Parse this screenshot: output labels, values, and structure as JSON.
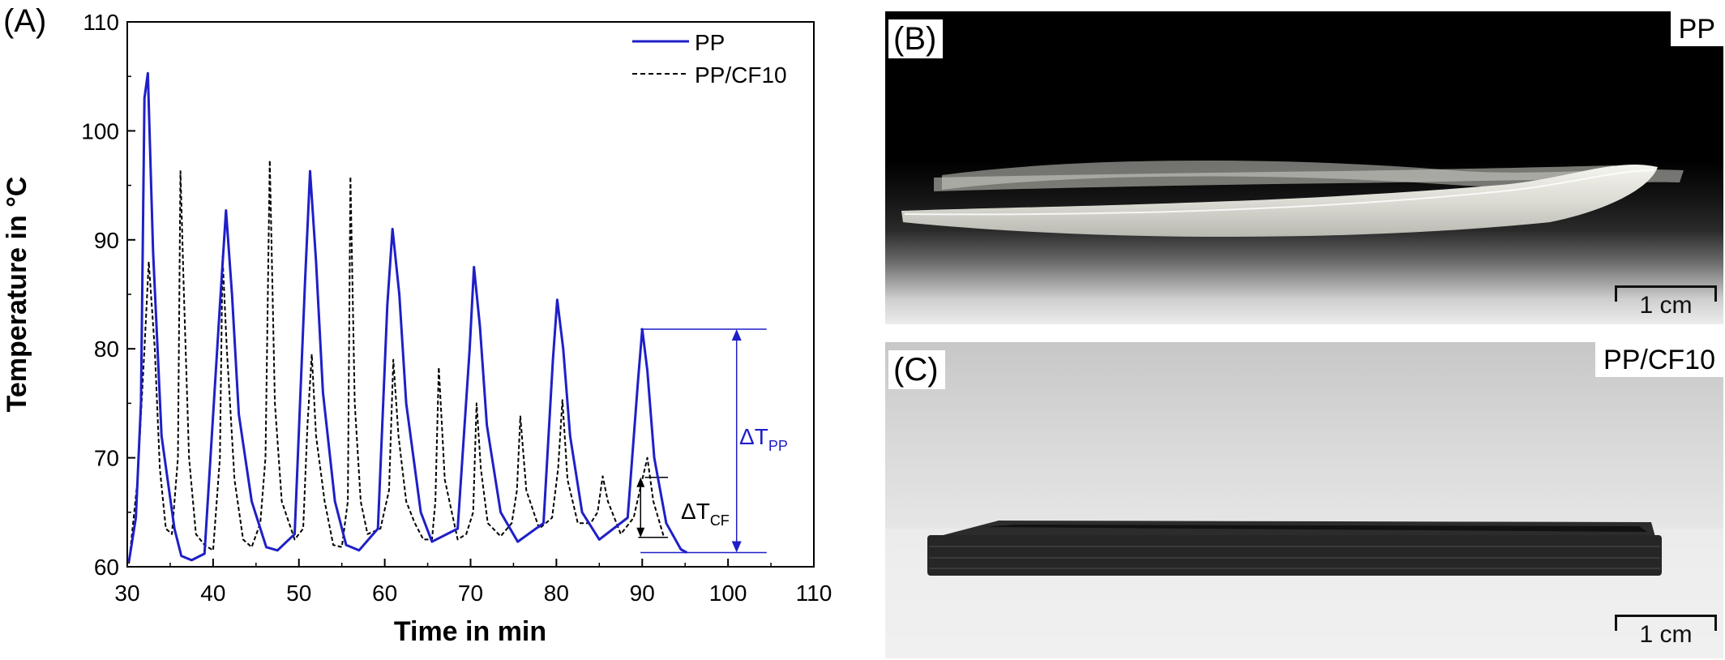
{
  "panels": {
    "a_label": "(A)",
    "b_label": "(B)",
    "c_label": "(C)"
  },
  "chart_data": {
    "type": "line",
    "xlabel": "Time in min",
    "ylabel": "Temperature in °C",
    "xlim": [
      30,
      110
    ],
    "ylim": [
      60,
      110
    ],
    "xticks": [
      30,
      40,
      50,
      60,
      70,
      80,
      90,
      100,
      110
    ],
    "yticks": [
      60,
      70,
      80,
      90,
      100,
      110
    ],
    "legend_position": "top-right",
    "series": [
      {
        "name": "PP",
        "color": "#1f1fc8",
        "style": "solid",
        "base": [
          60.8,
          60.7,
          60.9,
          61.0,
          61.4,
          61.6,
          61.9,
          62.2
        ],
        "x": [
          30.2,
          31.0,
          31.6,
          32.0,
          32.4,
          33.0,
          34.0,
          35.5,
          36.3,
          37.5,
          39.0,
          40.8,
          41.5,
          42.2,
          43.0,
          44.5,
          46.2,
          47.5,
          49.5,
          50.7,
          51.3,
          52.0,
          52.8,
          54.2,
          55.5,
          57.0,
          59.2,
          60.3,
          60.9,
          61.7,
          62.5,
          64.2,
          65.5,
          68.5,
          69.9,
          70.4,
          71.1,
          71.9,
          73.5,
          75.5,
          78.5,
          79.6,
          80.1,
          80.8,
          81.6,
          83.0,
          85.0,
          88.3,
          89.5,
          90.0,
          90.6,
          91.4,
          92.8,
          94.5,
          95.2
        ],
        "y": [
          60.5,
          64.5,
          75.0,
          103.0,
          105.3,
          89.0,
          72.0,
          63.5,
          61.0,
          60.6,
          61.2,
          84.0,
          92.7,
          85.0,
          74.0,
          66.0,
          61.8,
          61.5,
          63.0,
          86.0,
          96.3,
          88.0,
          76.0,
          66.0,
          62.0,
          61.5,
          63.5,
          84.0,
          91.0,
          85.0,
          75.0,
          65.0,
          62.3,
          63.5,
          80.0,
          87.5,
          82.0,
          73.0,
          65.0,
          62.3,
          64.0,
          79.0,
          84.5,
          80.0,
          72.0,
          65.0,
          62.5,
          64.5,
          77.0,
          81.8,
          78.0,
          70.0,
          64.0,
          61.6,
          61.3
        ]
      },
      {
        "name": "PP/CF10",
        "color": "#000000",
        "style": "dashed",
        "x": [
          30.2,
          31.2,
          32.0,
          32.5,
          33.2,
          33.8,
          34.5,
          35.2,
          35.9,
          36.2,
          36.6,
          37.2,
          38.0,
          39.0,
          40.0,
          40.8,
          41.1,
          41.6,
          42.5,
          43.5,
          44.5,
          45.5,
          46.1,
          46.6,
          47.2,
          48.0,
          49.5,
          50.5,
          51.0,
          51.5,
          52.0,
          53.0,
          54.0,
          55.0,
          55.7,
          56.0,
          56.5,
          57.2,
          58.0,
          59.5,
          60.5,
          61.0,
          61.6,
          62.5,
          63.5,
          64.5,
          65.5,
          65.9,
          66.3,
          67.0,
          68.5,
          69.5,
          70.3,
          70.7,
          71.2,
          72.0,
          73.5,
          74.8,
          75.4,
          75.8,
          76.5,
          78.0,
          79.5,
          80.2,
          80.7,
          81.3,
          82.5,
          84.0,
          84.8,
          85.4,
          86.0,
          87.5,
          89.0,
          90.0,
          90.6,
          91.3,
          92.5
        ],
        "y": [
          60.3,
          68.0,
          80.0,
          88.0,
          80.0,
          69.0,
          63.5,
          63.0,
          70.0,
          96.3,
          85.0,
          70.0,
          63.0,
          62.0,
          61.5,
          70.0,
          88.5,
          80.0,
          68.0,
          62.5,
          61.8,
          64.0,
          70.0,
          97.3,
          75.0,
          66.0,
          62.5,
          63.5,
          73.0,
          79.5,
          72.0,
          66.0,
          62.0,
          61.8,
          66.0,
          95.8,
          75.0,
          66.0,
          63.0,
          63.5,
          67.0,
          79.0,
          72.0,
          66.0,
          64.0,
          62.5,
          62.5,
          66.0,
          78.3,
          68.0,
          62.5,
          63.0,
          65.0,
          75.0,
          69.0,
          64.0,
          62.8,
          64.0,
          67.0,
          73.8,
          67.0,
          63.5,
          64.5,
          69.0,
          75.3,
          68.0,
          64.0,
          64.0,
          65.0,
          68.3,
          66.0,
          63.0,
          64.5,
          68.0,
          70.0,
          66.0,
          62.8
        ]
      }
    ],
    "annotations": {
      "dt_pp": "ΔT",
      "dt_pp_sub": "PP",
      "dt_cf": "ΔT",
      "dt_cf_sub": "CF"
    },
    "annotation_values": {
      "pp_top": 81.8,
      "pp_bottom": 61.3,
      "pp_from_x": 89.8,
      "pp_to_x": 104.5,
      "pp_arrow_x": 101.0,
      "cf_top": 68.2,
      "cf_bottom": 62.7,
      "cf_from_x": 90.3,
      "cf_to_x": 93.0,
      "cf_arrow_x": 91.7
    }
  },
  "photos": {
    "b_tag": "PP",
    "c_tag": "PP/CF10",
    "scale_label_b": "1 cm",
    "scale_label_c": "1 cm"
  }
}
